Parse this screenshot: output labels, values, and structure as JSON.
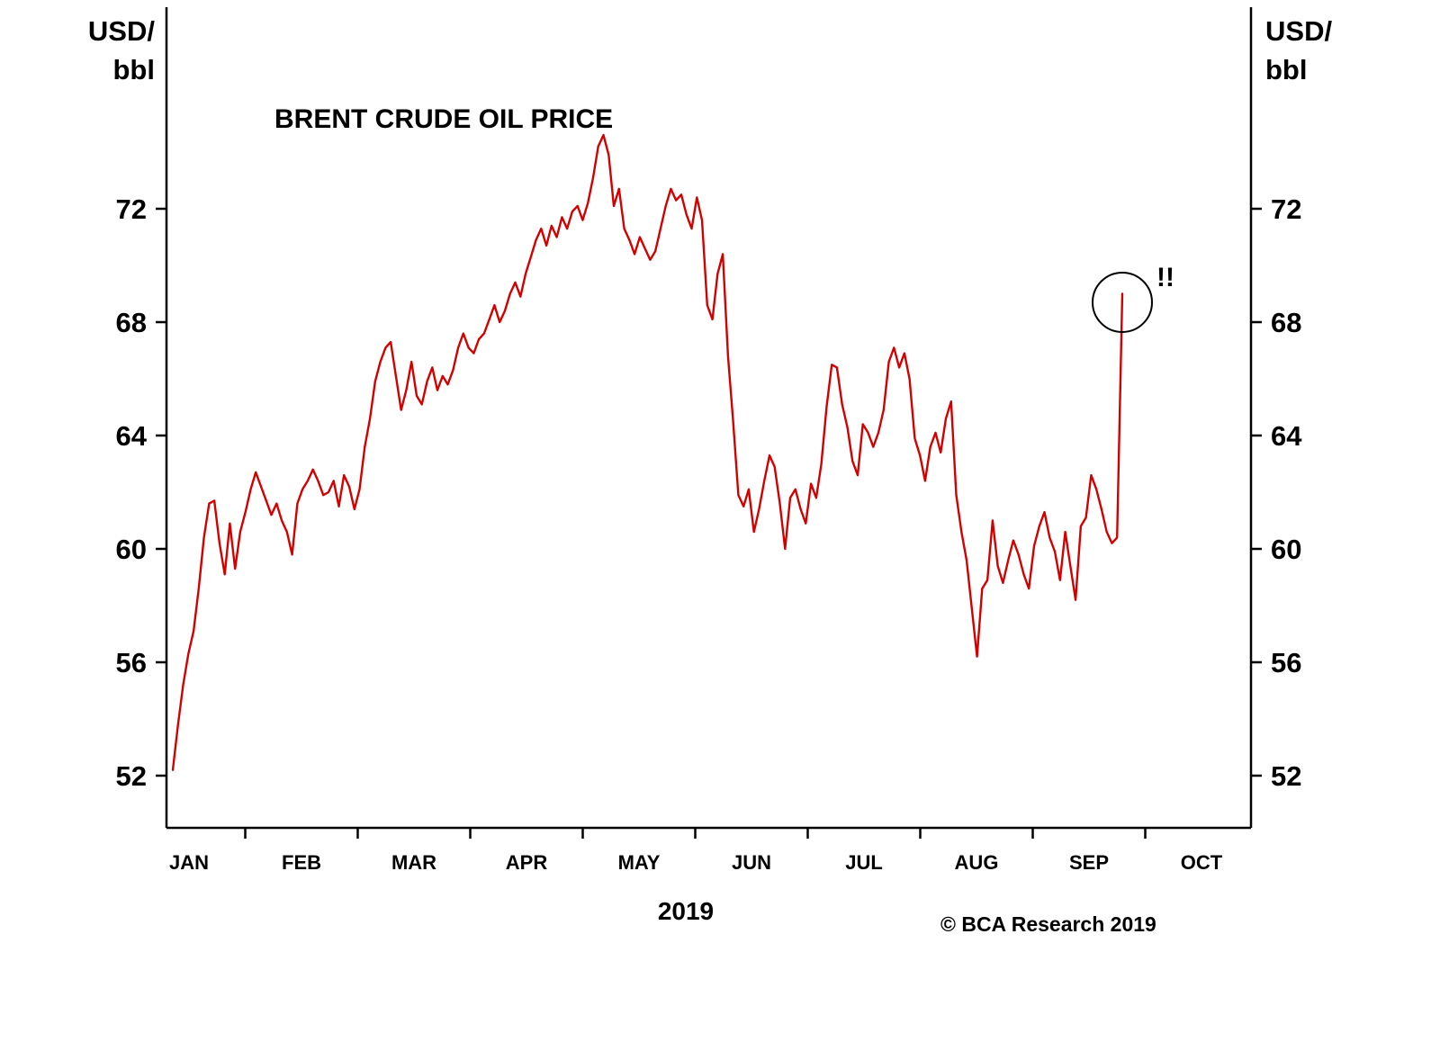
{
  "chart_data": {
    "type": "line",
    "title": "BRENT CRUDE OIL PRICE",
    "y_unit_line1": "USD/",
    "y_unit_line2": "bbl",
    "y_ticks": [
      52,
      56,
      60,
      64,
      68,
      72
    ],
    "y_range": [
      50.5,
      79
    ],
    "x_labels": [
      "JAN",
      "FEB",
      "MAR",
      "APR",
      "MAY",
      "JUN",
      "JUL",
      "AUG",
      "SEP",
      "OCT"
    ],
    "x_axis_year": "2019",
    "line_color": "#d40000",
    "grid": false,
    "legend": "none",
    "annotation": {
      "text": "!!",
      "shape": "circle",
      "target_value": 69.0
    },
    "copyright": "© BCA Research 2019",
    "series": [
      {
        "name": "Brent crude oil price (USD/bbl)",
        "values": [
          52.2,
          53.8,
          55.2,
          56.3,
          57.1,
          58.6,
          60.4,
          61.6,
          61.7,
          60.2,
          59.1,
          60.9,
          59.3,
          60.6,
          61.3,
          62.1,
          62.7,
          62.2,
          61.7,
          61.2,
          61.6,
          61.0,
          60.6,
          59.8,
          61.6,
          62.1,
          62.4,
          62.8,
          62.4,
          61.9,
          62.0,
          62.4,
          61.5,
          62.6,
          62.2,
          61.4,
          62.1,
          63.6,
          64.6,
          65.9,
          66.6,
          67.1,
          67.3,
          66.1,
          64.9,
          65.6,
          66.6,
          65.4,
          65.1,
          65.9,
          66.4,
          65.6,
          66.1,
          65.8,
          66.3,
          67.1,
          67.6,
          67.1,
          66.9,
          67.4,
          67.6,
          68.1,
          68.6,
          68.0,
          68.4,
          69.0,
          69.4,
          68.9,
          69.7,
          70.3,
          70.9,
          71.3,
          70.7,
          71.4,
          71.0,
          71.7,
          71.3,
          71.9,
          72.1,
          71.6,
          72.2,
          73.1,
          74.2,
          74.6,
          73.9,
          72.1,
          72.7,
          71.3,
          70.9,
          70.4,
          71.0,
          70.6,
          70.2,
          70.5,
          71.3,
          72.1,
          72.7,
          72.3,
          72.5,
          71.8,
          71.3,
          72.4,
          71.6,
          68.6,
          68.1,
          69.7,
          70.4,
          66.8,
          64.5,
          61.9,
          61.5,
          62.1,
          60.6,
          61.4,
          62.4,
          63.3,
          62.9,
          61.6,
          60.0,
          61.8,
          62.1,
          61.4,
          60.9,
          62.3,
          61.8,
          63.0,
          65.0,
          66.5,
          66.4,
          65.1,
          64.3,
          63.1,
          62.6,
          64.4,
          64.1,
          63.6,
          64.1,
          64.9,
          66.6,
          67.1,
          66.4,
          66.9,
          66.0,
          63.9,
          63.3,
          62.4,
          63.6,
          64.1,
          63.4,
          64.6,
          65.2,
          61.9,
          60.6,
          59.6,
          57.9,
          56.2,
          58.6,
          58.9,
          61.0,
          59.4,
          58.8,
          59.6,
          60.3,
          59.8,
          59.1,
          58.6,
          60.1,
          60.8,
          61.3,
          60.4,
          59.9,
          58.9,
          60.6,
          59.4,
          58.2,
          60.8,
          61.1,
          62.6,
          62.1,
          61.4,
          60.6,
          60.2,
          60.4,
          69.0
        ]
      }
    ]
  }
}
